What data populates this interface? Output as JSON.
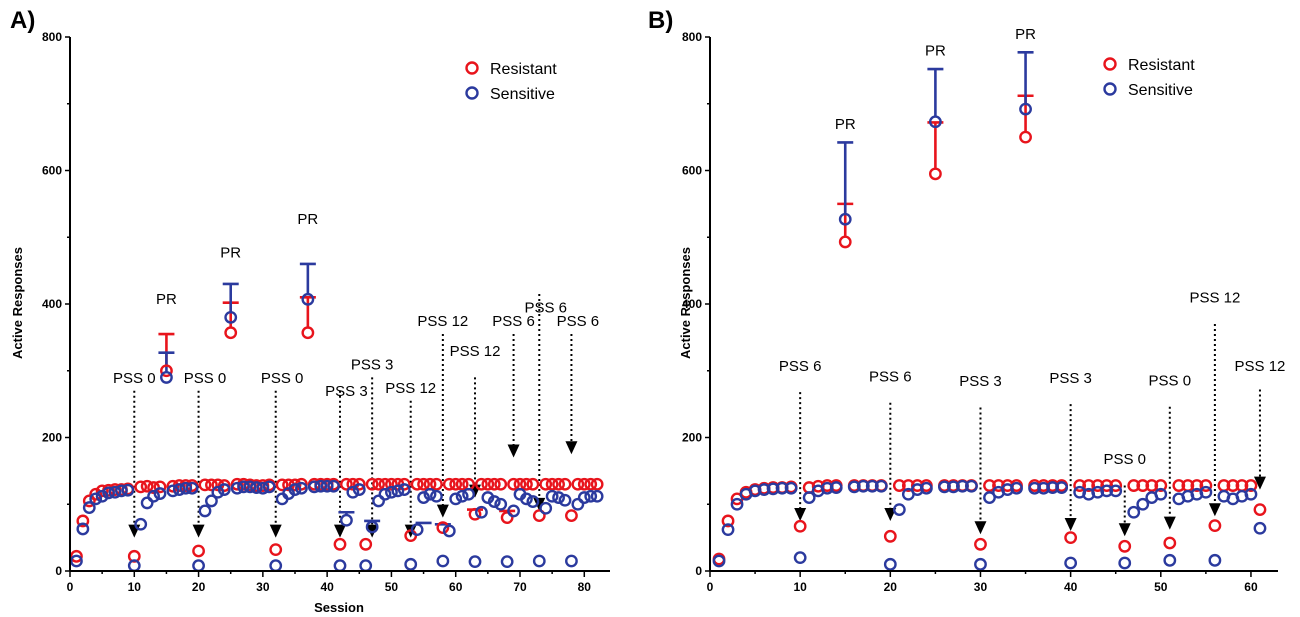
{
  "chart_data": [
    {
      "panel_label": "A)",
      "type": "scatter",
      "xlabel": "Session",
      "ylabel": "Active Responses",
      "xlim": [
        0,
        84
      ],
      "ylim": [
        0,
        800
      ],
      "xticks": [
        0,
        10,
        20,
        30,
        40,
        50,
        60,
        70,
        80
      ],
      "yticks": [
        0,
        200,
        400,
        600,
        800
      ],
      "legend": {
        "position": "top-right",
        "entries": [
          {
            "name": "Resistant",
            "color": "#e8141c"
          },
          {
            "name": "Sensitive",
            "color": "#2b3a9e"
          }
        ]
      },
      "series": [
        {
          "name": "Resistant",
          "color": "#e8141c",
          "x": [
            1,
            2,
            3,
            4,
            5,
            6,
            7,
            8,
            9,
            10,
            11,
            12,
            13,
            14,
            15,
            16,
            17,
            18,
            19,
            20,
            21,
            22,
            23,
            24,
            25,
            26,
            27,
            28,
            29,
            30,
            31,
            32,
            33,
            34,
            35,
            36,
            37,
            38,
            39,
            40,
            41,
            42,
            43,
            44,
            45,
            46,
            47,
            48,
            49,
            50,
            51,
            52,
            53,
            54,
            55,
            56,
            57,
            58,
            59,
            60,
            61,
            62,
            63,
            64,
            65,
            66,
            67,
            68,
            69,
            70,
            71,
            72,
            73,
            74,
            75,
            76,
            77,
            78,
            79,
            80,
            81,
            82
          ],
          "y": [
            22,
            75,
            105,
            115,
            120,
            121,
            122,
            122,
            123,
            22,
            126,
            127,
            125,
            126,
            300,
            127,
            128,
            128,
            128,
            30,
            129,
            129,
            129,
            128,
            357,
            130,
            130,
            129,
            128,
            128,
            129,
            32,
            129,
            129,
            129,
            130,
            357,
            130,
            130,
            130,
            130,
            40,
            130,
            130,
            130,
            40,
            130,
            130,
            130,
            130,
            130,
            130,
            53,
            130,
            130,
            130,
            130,
            65,
            130,
            130,
            130,
            130,
            85,
            130,
            130,
            130,
            130,
            80,
            130,
            130,
            130,
            130,
            83,
            130,
            130,
            130,
            130,
            83,
            130,
            130,
            130,
            130
          ]
        },
        {
          "name": "Sensitive",
          "color": "#2b3a9e",
          "x": [
            1,
            2,
            3,
            4,
            5,
            6,
            7,
            8,
            9,
            10,
            11,
            12,
            13,
            14,
            15,
            16,
            17,
            18,
            19,
            20,
            21,
            22,
            23,
            24,
            25,
            26,
            27,
            28,
            29,
            30,
            31,
            32,
            33,
            34,
            35,
            36,
            37,
            38,
            39,
            40,
            41,
            42,
            43,
            44,
            45,
            46,
            47,
            48,
            49,
            50,
            51,
            52,
            53,
            54,
            55,
            56,
            57,
            58,
            59,
            60,
            61,
            62,
            63,
            64,
            65,
            66,
            67,
            68,
            69,
            70,
            71,
            72,
            73,
            74,
            75,
            76,
            77,
            78,
            79,
            80,
            81,
            82
          ],
          "y": [
            15,
            63,
            95,
            108,
            112,
            117,
            118,
            120,
            121,
            8,
            70,
            102,
            112,
            116,
            290,
            120,
            122,
            124,
            124,
            8,
            90,
            105,
            118,
            122,
            380,
            124,
            126,
            126,
            125,
            124,
            126,
            8,
            108,
            116,
            122,
            124,
            407,
            126,
            127,
            127,
            127,
            8,
            76,
            118,
            122,
            8,
            66,
            105,
            115,
            118,
            120,
            122,
            10,
            62,
            110,
            115,
            112,
            15,
            60,
            108,
            112,
            115,
            14,
            88,
            110,
            104,
            100,
            14,
            90,
            115,
            108,
            104,
            15,
            94,
            112,
            110,
            106,
            15,
            100,
            110,
            112,
            112
          ]
        }
      ],
      "error_bars": [
        {
          "series": "Resistant",
          "x": 15,
          "y": 300,
          "upper": 355
        },
        {
          "series": "Sensitive",
          "x": 15,
          "y": 290,
          "upper": 327
        },
        {
          "series": "Resistant",
          "x": 25,
          "y": 357,
          "upper": 402
        },
        {
          "series": "Sensitive",
          "x": 25,
          "y": 380,
          "upper": 430
        },
        {
          "series": "Resistant",
          "x": 37,
          "y": 357,
          "upper": 410
        },
        {
          "series": "Sensitive",
          "x": 37,
          "y": 407,
          "upper": 460
        },
        {
          "series": "Sensitive",
          "x": 43,
          "y": 76,
          "upper": 88
        },
        {
          "series": "Sensitive",
          "x": 47,
          "y": 66,
          "upper": 75
        },
        {
          "series": "Sensitive",
          "x": 55,
          "y": 62,
          "upper": 72
        },
        {
          "series": "Sensitive",
          "x": 58,
          "y": 60,
          "upper": 70
        },
        {
          "series": "Resistant",
          "x": 63,
          "y": 85,
          "upper": 92
        },
        {
          "series": "Resistant",
          "x": 68,
          "y": 80,
          "upper": 90
        }
      ],
      "pr_labels": [
        {
          "text": "PR",
          "x": 15,
          "y": 400
        },
        {
          "text": "PR",
          "x": 25,
          "y": 470
        },
        {
          "text": "PR",
          "x": 37,
          "y": 520
        }
      ],
      "arrows": [
        {
          "text": "PSS 0",
          "x": 10,
          "top": 270,
          "bottom": 50,
          "label_x": 10,
          "label_y": 282
        },
        {
          "text": "PSS 0",
          "x": 20,
          "top": 270,
          "bottom": 50,
          "label_x": 21,
          "label_y": 282
        },
        {
          "text": "PSS 0",
          "x": 32,
          "top": 270,
          "bottom": 50,
          "label_x": 33,
          "label_y": 282
        },
        {
          "text": "PSS 3",
          "x": 42,
          "top": 270,
          "bottom": 50,
          "label_x": 43,
          "label_y": 262
        },
        {
          "text": "PSS 3",
          "x": 47,
          "top": 290,
          "bottom": 50,
          "label_x": 47,
          "label_y": 302
        },
        {
          "text": "PSS 12",
          "x": 53,
          "top": 255,
          "bottom": 50,
          "label_x": 53,
          "label_y": 267
        },
        {
          "text": "PSS 12",
          "x": 58,
          "top": 355,
          "bottom": 80,
          "label_x": 58,
          "label_y": 367
        },
        {
          "text": "PSS 12",
          "x": 63,
          "top": 290,
          "bottom": 110,
          "label_x": 63,
          "label_y": 322
        },
        {
          "text": "PSS 6",
          "x": 69,
          "top": 355,
          "bottom": 170,
          "label_x": 69,
          "label_y": 367
        },
        {
          "text": "PSS 6",
          "x": 73,
          "top": 415,
          "bottom": 90,
          "label_x": 74,
          "label_y": 387
        },
        {
          "text": "PSS 6",
          "x": 78,
          "top": 355,
          "bottom": 175,
          "label_x": 79,
          "label_y": 367
        }
      ]
    },
    {
      "panel_label": "B)",
      "type": "scatter",
      "xlabel": "",
      "ylabel": "Active Responses",
      "xlim": [
        0,
        63
      ],
      "ylim": [
        0,
        800
      ],
      "xticks": [
        0,
        10,
        20,
        30,
        40,
        50,
        60
      ],
      "yticks": [
        0,
        200,
        400,
        600,
        800
      ],
      "legend": {
        "position": "top-right",
        "entries": [
          {
            "name": "Resistant",
            "color": "#e8141c"
          },
          {
            "name": "Sensitive",
            "color": "#2b3a9e"
          }
        ]
      },
      "series": [
        {
          "name": "Resistant",
          "color": "#e8141c",
          "x": [
            1,
            2,
            3,
            4,
            5,
            6,
            7,
            8,
            9,
            10,
            11,
            12,
            13,
            14,
            15,
            16,
            17,
            18,
            19,
            20,
            21,
            22,
            23,
            24,
            25,
            26,
            27,
            28,
            29,
            30,
            31,
            32,
            33,
            34,
            35,
            36,
            37,
            38,
            39,
            40,
            41,
            42,
            43,
            44,
            45,
            46,
            47,
            48,
            49,
            50,
            51,
            52,
            53,
            54,
            55,
            56,
            57,
            58,
            59,
            60,
            61
          ],
          "y": [
            18,
            75,
            108,
            118,
            122,
            124,
            125,
            125,
            126,
            67,
            125,
            127,
            128,
            128,
            493,
            128,
            128,
            128,
            128,
            52,
            128,
            128,
            128,
            128,
            595,
            128,
            128,
            128,
            128,
            40,
            128,
            128,
            128,
            128,
            650,
            128,
            128,
            128,
            128,
            50,
            128,
            128,
            128,
            128,
            128,
            37,
            128,
            128,
            128,
            128,
            42,
            128,
            128,
            128,
            128,
            68,
            128,
            128,
            128,
            128,
            92
          ]
        },
        {
          "name": "Sensitive",
          "color": "#2b3a9e",
          "x": [
            1,
            2,
            3,
            4,
            5,
            6,
            7,
            8,
            9,
            10,
            11,
            12,
            13,
            14,
            15,
            16,
            17,
            18,
            19,
            20,
            21,
            22,
            23,
            24,
            25,
            26,
            27,
            28,
            29,
            30,
            31,
            32,
            33,
            34,
            35,
            36,
            37,
            38,
            39,
            40,
            41,
            42,
            43,
            44,
            45,
            46,
            47,
            48,
            49,
            50,
            51,
            52,
            53,
            54,
            55,
            56,
            57,
            58,
            59,
            60,
            61
          ],
          "y": [
            15,
            62,
            100,
            115,
            120,
            122,
            123,
            124,
            124,
            20,
            110,
            120,
            124,
            125,
            527,
            126,
            127,
            127,
            127,
            10,
            92,
            115,
            122,
            124,
            673,
            126,
            126,
            127,
            127,
            10,
            110,
            118,
            122,
            124,
            692,
            124,
            124,
            125,
            125,
            12,
            118,
            115,
            118,
            120,
            120,
            12,
            88,
            100,
            110,
            115,
            16,
            108,
            112,
            115,
            118,
            16,
            112,
            108,
            112,
            115,
            64
          ]
        }
      ],
      "error_bars": [
        {
          "series": "Resistant",
          "x": 15,
          "y": 493,
          "upper": 550
        },
        {
          "series": "Sensitive",
          "x": 15,
          "y": 527,
          "upper": 642
        },
        {
          "series": "Resistant",
          "x": 25,
          "y": 595,
          "upper": 672
        },
        {
          "series": "Sensitive",
          "x": 25,
          "y": 673,
          "upper": 752
        },
        {
          "series": "Resistant",
          "x": 35,
          "y": 650,
          "upper": 712
        },
        {
          "series": "Sensitive",
          "x": 35,
          "y": 692,
          "upper": 777
        }
      ],
      "pr_labels": [
        {
          "text": "PR",
          "x": 15,
          "y": 662
        },
        {
          "text": "PR",
          "x": 25,
          "y": 772
        },
        {
          "text": "PR",
          "x": 35,
          "y": 797
        }
      ],
      "arrows": [
        {
          "text": "PSS 6",
          "x": 10,
          "top": 268,
          "bottom": 75,
          "label_x": 10,
          "label_y": 300
        },
        {
          "text": "PSS 6",
          "x": 20,
          "top": 252,
          "bottom": 75,
          "label_x": 20,
          "label_y": 284
        },
        {
          "text": "PSS 3",
          "x": 30,
          "top": 245,
          "bottom": 55,
          "label_x": 30,
          "label_y": 277
        },
        {
          "text": "PSS 3",
          "x": 40,
          "top": 250,
          "bottom": 60,
          "label_x": 40,
          "label_y": 282
        },
        {
          "text": "PSS 0",
          "x": 46,
          "top": 128,
          "bottom": 52,
          "label_x": 46,
          "label_y": 160
        },
        {
          "text": "PSS 0",
          "x": 51,
          "top": 246,
          "bottom": 62,
          "label_x": 51,
          "label_y": 278
        },
        {
          "text": "PSS 12",
          "x": 56,
          "top": 370,
          "bottom": 82,
          "label_x": 56,
          "label_y": 402
        },
        {
          "text": "PSS 12",
          "x": 61,
          "top": 272,
          "bottom": 122,
          "label_x": 61,
          "label_y": 300
        }
      ]
    }
  ]
}
